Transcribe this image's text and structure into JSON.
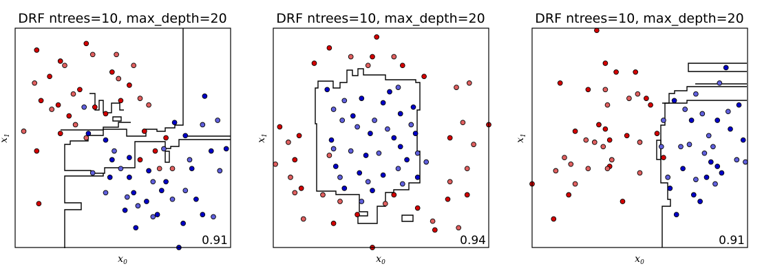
{
  "chart_data": [
    {
      "type": "scatter",
      "title": "DRF ntrees=10, max_depth=20",
      "xlabel": "x0",
      "ylabel": "x1",
      "score": "0.91",
      "xlim": [
        0,
        10
      ],
      "ylim": [
        0,
        10
      ],
      "grid": false,
      "colors": {
        "red": "#d40000",
        "red_faded": "#e06060",
        "blue": "#0000c8",
        "blue_faded": "#6060dc"
      },
      "series": [
        {
          "class": "red",
          "points": [
            [
              1.0,
              9.0
            ],
            [
              1.6,
              7.8
            ],
            [
              2.1,
              8.5
            ],
            [
              3.0,
              7.2
            ],
            [
              4.5,
              8.0
            ],
            [
              5.3,
              7.4
            ],
            [
              1.2,
              6.7
            ],
            [
              2.5,
              6.0
            ],
            [
              3.7,
              6.4
            ],
            [
              4.2,
              6.1
            ],
            [
              1.0,
              4.4
            ],
            [
              2.1,
              5.2
            ],
            [
              6.0,
              5.3
            ],
            [
              6.5,
              4.4
            ],
            [
              5.8,
              4.0
            ],
            [
              1.1,
              2.0
            ],
            [
              2.0,
              6.5
            ],
            [
              3.3,
              9.3
            ],
            [
              4.9,
              6.7
            ],
            [
              7.0,
              5.0
            ]
          ]
        },
        {
          "class": "red_faded",
          "points": [
            [
              0.9,
              7.5
            ],
            [
              2.3,
              8.3
            ],
            [
              3.6,
              8.8
            ],
            [
              4.8,
              7.7
            ],
            [
              5.8,
              6.8
            ],
            [
              1.7,
              6.3
            ],
            [
              2.8,
              5.6
            ],
            [
              0.4,
              5.3
            ],
            [
              3.3,
              5.0
            ],
            [
              6.7,
              3.6
            ],
            [
              7.3,
              3.6
            ],
            [
              4.7,
              8.8
            ],
            [
              5.5,
              8.3
            ],
            [
              2.7,
              7.0
            ],
            [
              6.2,
              6.5
            ]
          ]
        },
        {
          "class": "blue",
          "points": [
            [
              3.4,
              5.2
            ],
            [
              4.2,
              4.9
            ],
            [
              5.3,
              4.1
            ],
            [
              6.2,
              3.5
            ],
            [
              7.0,
              3.0
            ],
            [
              8.4,
              2.2
            ],
            [
              9.1,
              4.4
            ],
            [
              8.8,
              6.9
            ],
            [
              7.4,
              5.7
            ],
            [
              4.4,
              3.2
            ],
            [
              5.5,
              2.5
            ],
            [
              6.1,
              2.1
            ],
            [
              7.8,
              1.1
            ],
            [
              5.3,
              3.2
            ],
            [
              6.8,
              2.6
            ],
            [
              8.2,
              3.6
            ],
            [
              7.9,
              5.1
            ],
            [
              4.5,
              4.0
            ],
            [
              5.1,
              1.7
            ],
            [
              7.6,
              0.0
            ],
            [
              8.7,
              1.5
            ],
            [
              9.8,
              4.5
            ],
            [
              6.6,
              1.5
            ],
            [
              5.6,
              0.9
            ]
          ]
        },
        {
          "class": "blue_faded",
          "points": [
            [
              3.6,
              3.4
            ],
            [
              4.2,
              2.5
            ],
            [
              5.7,
              1.9
            ],
            [
              6.4,
              1.4
            ],
            [
              7.3,
              2.2
            ],
            [
              8.7,
              5.6
            ],
            [
              9.5,
              3.5
            ],
            [
              9.4,
              5.8
            ],
            [
              6.9,
              4.5
            ],
            [
              5.2,
              2.3
            ],
            [
              8.1,
              4.0
            ],
            [
              7.9,
              2.6
            ],
            [
              4.9,
              3.6
            ],
            [
              9.2,
              1.4
            ],
            [
              6.4,
              3.0
            ],
            [
              3.2,
              6.4
            ],
            [
              4.6,
              4.4
            ]
          ]
        }
      ]
    },
    {
      "type": "scatter",
      "title": "DRF ntrees=10, max_depth=20",
      "xlabel": "x0",
      "ylabel": "x1",
      "score": "0.94",
      "xlim": [
        0,
        10
      ],
      "ylim": [
        0,
        10
      ],
      "grid": false,
      "colors": {
        "red": "#d40000",
        "red_faded": "#e06060",
        "blue": "#0000c8",
        "blue_faded": "#6060dc"
      },
      "series": [
        {
          "class": "red",
          "points": [
            [
              1.9,
              8.4
            ],
            [
              4.6,
              8.7
            ],
            [
              6.0,
              8.3
            ],
            [
              7.0,
              7.8
            ],
            [
              8.2,
              5.0
            ],
            [
              1.2,
              5.1
            ],
            [
              0.3,
              5.5
            ],
            [
              1.0,
              4.0
            ],
            [
              1.3,
              2.7
            ],
            [
              2.8,
              1.1
            ],
            [
              3.9,
              1.5
            ],
            [
              4.6,
              0.0
            ],
            [
              5.6,
              2.4
            ],
            [
              8.1,
              2.2
            ],
            [
              9.0,
              2.4
            ],
            [
              7.5,
              0.8
            ],
            [
              6.7,
              1.8
            ],
            [
              10.0,
              5.6
            ],
            [
              4.8,
              9.6
            ],
            [
              2.6,
              9.1
            ]
          ]
        },
        {
          "class": "red_faded",
          "points": [
            [
              3.6,
              8.7
            ],
            [
              4.4,
              8.3
            ],
            [
              5.6,
              8.7
            ],
            [
              8.5,
              7.3
            ],
            [
              9.1,
              7.5
            ],
            [
              8.8,
              5.7
            ],
            [
              0.7,
              4.8
            ],
            [
              0.8,
              3.2
            ],
            [
              1.0,
              2.5
            ],
            [
              3.1,
              2.1
            ],
            [
              7.4,
              1.2
            ],
            [
              8.2,
              3.0
            ],
            [
              9.3,
              4.7
            ],
            [
              9.0,
              3.6
            ],
            [
              2.6,
              4.2
            ],
            [
              0.1,
              3.8
            ],
            [
              1.4,
              1.3
            ],
            [
              5.2,
              2.0
            ],
            [
              8.6,
              0.9
            ],
            [
              2.3,
              2.4
            ]
          ]
        },
        {
          "class": "blue",
          "points": [
            [
              2.5,
              7.2
            ],
            [
              4.1,
              6.8
            ],
            [
              5.1,
              6.6
            ],
            [
              6.5,
              6.4
            ],
            [
              3.7,
              6.0
            ],
            [
              5.9,
              6.1
            ],
            [
              4.5,
              5.2
            ],
            [
              5.6,
              5.0
            ],
            [
              6.6,
              5.2
            ],
            [
              2.7,
              4.9
            ],
            [
              4.3,
              4.2
            ],
            [
              5.9,
              4.6
            ],
            [
              2.9,
              3.7
            ],
            [
              4.0,
              3.4
            ],
            [
              5.1,
              3.3
            ],
            [
              6.7,
              3.2
            ],
            [
              3.3,
              2.7
            ],
            [
              4.6,
              2.6
            ],
            [
              6.2,
              4.0
            ],
            [
              5.4,
              7.1
            ]
          ]
        },
        {
          "class": "blue_faded",
          "points": [
            [
              3.2,
              5.8
            ],
            [
              4.7,
              5.8
            ],
            [
              6.4,
              5.6
            ],
            [
              2.8,
              6.3
            ],
            [
              3.6,
              4.4
            ],
            [
              4.9,
              4.3
            ],
            [
              6.7,
              4.3
            ],
            [
              3.1,
              3.2
            ],
            [
              4.4,
              3.0
            ],
            [
              5.8,
              3.6
            ],
            [
              7.1,
              3.9
            ],
            [
              2.8,
              4.5
            ],
            [
              5.3,
              5.4
            ],
            [
              3.9,
              5.5
            ],
            [
              6.0,
              2.9
            ],
            [
              4.1,
              2.1
            ],
            [
              3.3,
              6.7
            ],
            [
              5.8,
              7.3
            ]
          ]
        }
      ]
    },
    {
      "type": "scatter",
      "title": "DRF ntrees=10, max_depth=20",
      "xlabel": "x0",
      "ylabel": "x1",
      "score": "0.91",
      "xlim": [
        0,
        10
      ],
      "ylim": [
        0,
        10
      ],
      "grid": false,
      "colors": {
        "red": "#d40000",
        "red_faded": "#e06060",
        "blue": "#0000c8",
        "blue_faded": "#6060dc"
      },
      "series": [
        {
          "class": "red",
          "points": [
            [
              1.3,
              7.5
            ],
            [
              2.6,
              7.2
            ],
            [
              3.4,
              8.4
            ],
            [
              3.9,
              8.0
            ],
            [
              4.8,
              8.0
            ],
            [
              5.3,
              6.8
            ],
            [
              3.1,
              5.6
            ],
            [
              2.0,
              5.3
            ],
            [
              4.4,
              5.1
            ],
            [
              3.6,
              3.7
            ],
            [
              3.6,
              4.9
            ],
            [
              1.0,
              1.3
            ],
            [
              0.0,
              2.9
            ],
            [
              4.2,
              2.1
            ],
            [
              3.0,
              9.9
            ],
            [
              6.1,
              4.1
            ],
            [
              5.5,
              6.5
            ],
            [
              5.8,
              5.2
            ],
            [
              3.4,
              5.4
            ],
            [
              1.7,
              2.4
            ]
          ]
        },
        {
          "class": "red_faded",
          "points": [
            [
              3.3,
              4.6
            ],
            [
              2.6,
              3.6
            ],
            [
              3.7,
              4.0
            ],
            [
              1.8,
              3.8
            ],
            [
              1.1,
              3.5
            ],
            [
              4.5,
              6.8
            ],
            [
              5.0,
              4.8
            ],
            [
              3.5,
              6.5
            ],
            [
              2.5,
              4.9
            ],
            [
              1.5,
              4.1
            ],
            [
              3.5,
              3.6
            ],
            [
              2.9,
              4.8
            ],
            [
              4.9,
              7.0
            ],
            [
              2.0,
              2.9
            ],
            [
              5.0,
              3.4
            ],
            [
              3.4,
              7.2
            ]
          ]
        },
        {
          "class": "blue",
          "points": [
            [
              6.6,
              6.7
            ],
            [
              7.4,
              5.8
            ],
            [
              8.6,
              5.8
            ],
            [
              9.2,
              5.4
            ],
            [
              7.0,
              3.6
            ],
            [
              8.3,
              3.9
            ],
            [
              8.8,
              3.4
            ],
            [
              9.8,
              4.9
            ],
            [
              7.5,
              2.4
            ],
            [
              8.1,
              3.2
            ],
            [
              6.4,
              2.7
            ],
            [
              7.8,
              2.1
            ],
            [
              6.7,
              1.5
            ],
            [
              9.0,
              8.2
            ],
            [
              8.6,
              3.7
            ],
            [
              9.6,
              6.5
            ]
          ]
        },
        {
          "class": "blue_faded",
          "points": [
            [
              7.1,
              6.3
            ],
            [
              7.6,
              7.0
            ],
            [
              8.7,
              7.5
            ],
            [
              6.9,
              4.6
            ],
            [
              8.0,
              4.3
            ],
            [
              9.5,
              4.0
            ],
            [
              7.6,
              3.1
            ],
            [
              8.4,
              4.6
            ],
            [
              7.9,
              6.1
            ],
            [
              9.1,
              6.2
            ],
            [
              6.0,
              4.6
            ],
            [
              7.3,
              4.7
            ],
            [
              6.1,
              5.8
            ],
            [
              9.9,
              3.9
            ],
            [
              6.3,
              3.2
            ],
            [
              8.5,
              2.9
            ],
            [
              8.2,
              5.1
            ]
          ]
        }
      ]
    }
  ]
}
